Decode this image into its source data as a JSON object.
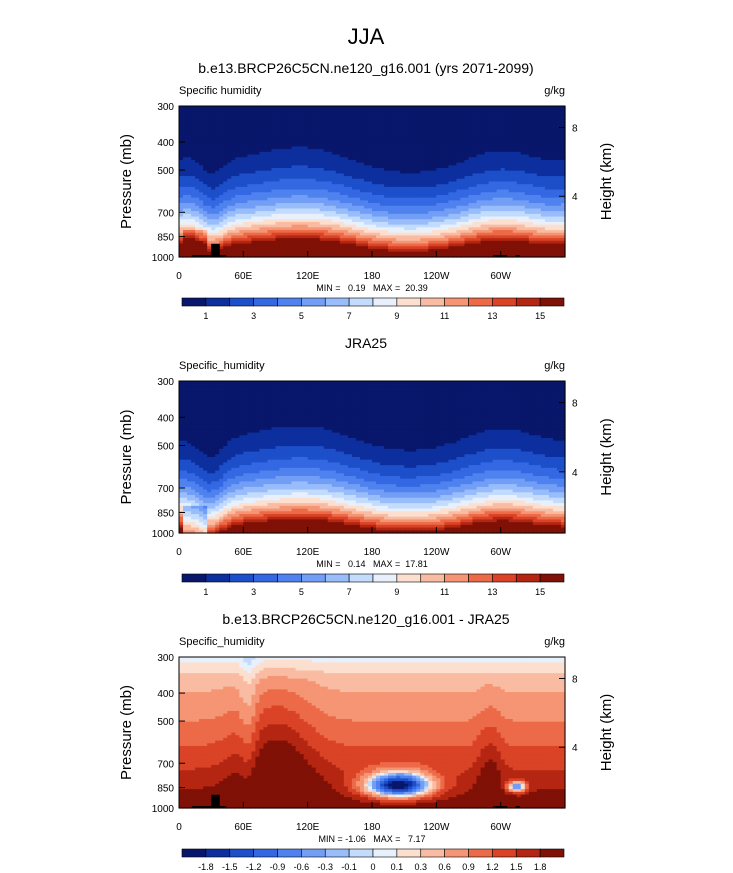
{
  "figure": {
    "season": "JJA"
  },
  "chart_data": [
    {
      "type": "heatmap",
      "title": "b.e13.BRCP26C5CN.ne120_g16.001 (yrs 2071-2099)",
      "left_label": "Specific humidity",
      "right_label": "g/kg",
      "ylabel": "Pressure (mb)",
      "y2label": "Height (km)",
      "xlabel": "",
      "x_ticks": [
        "0",
        "60E",
        "120E",
        "180",
        "120W",
        "60W"
      ],
      "x_range": [
        0,
        360
      ],
      "y_ticks": [
        "300",
        "400",
        "500",
        "700",
        "850",
        "1000"
      ],
      "y_range": [
        300,
        1000
      ],
      "y2_ticks": [
        "8",
        "4"
      ],
      "stats": "MIN =   0.19   MAX =  20.39",
      "min": 0.19,
      "max": 20.39,
      "colorbar_labels": [
        "1",
        "3",
        "5",
        "7",
        "9",
        "11",
        "13",
        "15"
      ],
      "colorbar_levels": [
        1,
        2,
        3,
        4,
        5,
        6,
        7,
        8,
        9,
        10,
        11,
        12,
        13,
        14,
        15
      ],
      "colors": [
        "#08176b",
        "#0d2f9e",
        "#1c4fc9",
        "#3468e3",
        "#4f82ef",
        "#729ef6",
        "#98bdfa",
        "#c3dbfc",
        "#e8f1fb",
        "#fcdfcf",
        "#f9bca3",
        "#f59574",
        "#ec6a48",
        "#da4326",
        "#b52612",
        "#801107"
      ]
    },
    {
      "type": "heatmap",
      "title": "JRA25",
      "left_label": "Specific_humidity",
      "right_label": "g/kg",
      "ylabel": "Pressure (mb)",
      "y2label": "Height (km)",
      "xlabel": "",
      "x_ticks": [
        "0",
        "60E",
        "120E",
        "180",
        "120W",
        "60W"
      ],
      "x_range": [
        0,
        360
      ],
      "y_ticks": [
        "300",
        "400",
        "500",
        "700",
        "850",
        "1000"
      ],
      "y_range": [
        300,
        1000
      ],
      "y2_ticks": [
        "8",
        "4"
      ],
      "stats": "MIN =   0.14   MAX =  17.81",
      "min": 0.14,
      "max": 17.81,
      "colorbar_labels": [
        "1",
        "3",
        "5",
        "7",
        "9",
        "11",
        "13",
        "15"
      ],
      "colorbar_levels": [
        1,
        2,
        3,
        4,
        5,
        6,
        7,
        8,
        9,
        10,
        11,
        12,
        13,
        14,
        15
      ],
      "colors": [
        "#08176b",
        "#0d2f9e",
        "#1c4fc9",
        "#3468e3",
        "#4f82ef",
        "#729ef6",
        "#98bdfa",
        "#c3dbfc",
        "#e8f1fb",
        "#fcdfcf",
        "#f9bca3",
        "#f59574",
        "#ec6a48",
        "#da4326",
        "#b52612",
        "#801107"
      ]
    },
    {
      "type": "heatmap",
      "title": "b.e13.BRCP26C5CN.ne120_g16.001 - JRA25",
      "left_label": "Specific_humidity",
      "right_label": "g/kg",
      "ylabel": "Pressure (mb)",
      "y2label": "Height (km)",
      "xlabel": "",
      "x_ticks": [
        "0",
        "60E",
        "120E",
        "180",
        "120W",
        "60W"
      ],
      "x_range": [
        0,
        360
      ],
      "y_ticks": [
        "300",
        "400",
        "500",
        "700",
        "850",
        "1000"
      ],
      "y_range": [
        300,
        1000
      ],
      "y2_ticks": [
        "8",
        "4"
      ],
      "stats": "MIN = -1.06   MAX =   7.17",
      "min": -1.06,
      "max": 7.17,
      "colorbar_labels": [
        "-1.8",
        "-1.5",
        "-1.2",
        "-0.9",
        "-0.6",
        "-0.3",
        "-0.1",
        "0",
        "0.1",
        "0.3",
        "0.6",
        "0.9",
        "1.2",
        "1.5",
        "1.8"
      ],
      "colorbar_levels": [
        -1.8,
        -1.5,
        -1.2,
        -0.9,
        -0.6,
        -0.3,
        -0.1,
        0,
        0.1,
        0.3,
        0.6,
        0.9,
        1.2,
        1.5,
        1.8
      ],
      "colors": [
        "#08176b",
        "#0d2f9e",
        "#1c4fc9",
        "#3468e3",
        "#4f82ef",
        "#729ef6",
        "#98bdfa",
        "#c3dbfc",
        "#e8f1fb",
        "#fcdfcf",
        "#f9bca3",
        "#f59574",
        "#ec6a48",
        "#da4326",
        "#b52612",
        "#801107"
      ]
    }
  ]
}
